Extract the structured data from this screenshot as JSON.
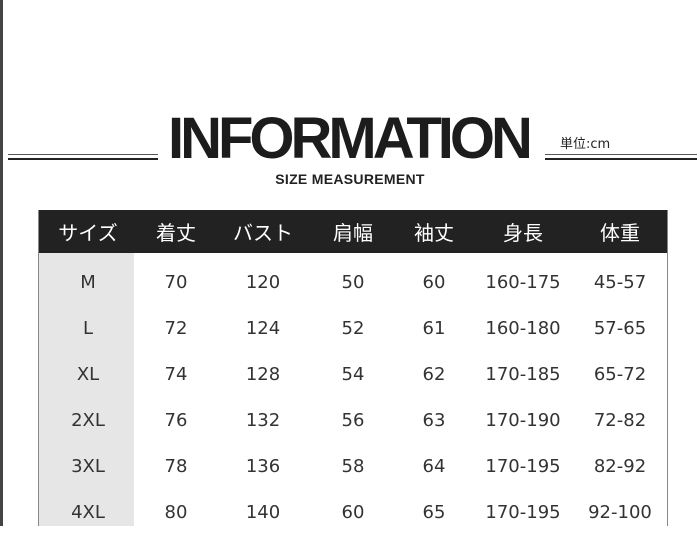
{
  "header": {
    "title": "INFORMATION",
    "subtitle": "SIZE MEASUREMENT",
    "unit": "単位:cm"
  },
  "table": {
    "columns": [
      "サイズ",
      "着丈",
      "バスト",
      "肩幅",
      "袖丈",
      "身長",
      "体重"
    ],
    "rows": [
      [
        "M",
        "70",
        "120",
        "50",
        "60",
        "160-175",
        "45-57"
      ],
      [
        "L",
        "72",
        "124",
        "52",
        "61",
        "160-180",
        "57-65"
      ],
      [
        "XL",
        "74",
        "128",
        "54",
        "62",
        "170-185",
        "65-72"
      ],
      [
        "2XL",
        "76",
        "132",
        "56",
        "63",
        "170-190",
        "72-82"
      ],
      [
        "3XL",
        "78",
        "136",
        "58",
        "64",
        "170-195",
        "82-92"
      ],
      [
        "4XL",
        "80",
        "140",
        "60",
        "65",
        "170-195",
        "92-100"
      ]
    ]
  }
}
